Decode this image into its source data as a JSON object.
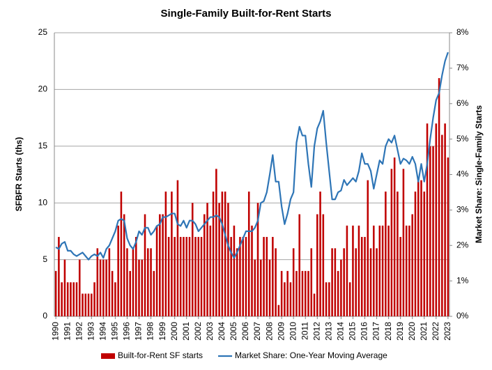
{
  "chart_data": {
    "type": "bar-line",
    "title": "Single-Family Built-for-Rent Starts",
    "y_label": "SFBFR Starts (ths)",
    "y2_label": "Market Share: Single-Family Starts",
    "categories": [
      "1990",
      null,
      null,
      null,
      "1991",
      null,
      null,
      null,
      "1992",
      null,
      null,
      null,
      "1993",
      null,
      null,
      null,
      "1994",
      null,
      null,
      null,
      "1995",
      null,
      null,
      null,
      "1996",
      null,
      null,
      null,
      "1997",
      null,
      null,
      null,
      "1998",
      null,
      null,
      null,
      "1999",
      null,
      null,
      null,
      "2000",
      null,
      null,
      null,
      "2001",
      null,
      null,
      null,
      "2002",
      null,
      null,
      null,
      "2003",
      null,
      null,
      null,
      "2004",
      null,
      null,
      null,
      "2005",
      null,
      null,
      null,
      "2006",
      null,
      null,
      null,
      "2007",
      null,
      null,
      null,
      "2008",
      null,
      null,
      null,
      "2009",
      null,
      null,
      null,
      "2010",
      null,
      null,
      null,
      "2011",
      null,
      null,
      null,
      "2012",
      null,
      null,
      null,
      "2013",
      null,
      null,
      null,
      "2014",
      null,
      null,
      null,
      "2015",
      null,
      null,
      null,
      "2016",
      null,
      null,
      null,
      "2017",
      null,
      null,
      null,
      "2018",
      null,
      null,
      null,
      "2019",
      null,
      null,
      null,
      "2020",
      null,
      null,
      null,
      "2021",
      null,
      null,
      null,
      "2022",
      null,
      null,
      null,
      "2023"
    ],
    "series": [
      {
        "name": "Built-for-Rent SF starts",
        "type": "bar",
        "color": "#c00000",
        "values": [
          4,
          7,
          3,
          5,
          3,
          3,
          3,
          3,
          5,
          2,
          2,
          2,
          2,
          3,
          6,
          5,
          5,
          5,
          6,
          4,
          3,
          8,
          11,
          9,
          6,
          4,
          6,
          7,
          5,
          5,
          9,
          6,
          6,
          4,
          8,
          9,
          9,
          11,
          7,
          11,
          7,
          12,
          7,
          7,
          7,
          7,
          10,
          7,
          7,
          7,
          9,
          10,
          8,
          11,
          13,
          10,
          11,
          11,
          10,
          7,
          8,
          6,
          7,
          7,
          7,
          11,
          8,
          5,
          10,
          5,
          7,
          7,
          5,
          7,
          6,
          1,
          4,
          3,
          4,
          3,
          6,
          4,
          9,
          4,
          4,
          4,
          6,
          2,
          9,
          11,
          9,
          3,
          3,
          6,
          6,
          4,
          5,
          6,
          8,
          3,
          8,
          6,
          8,
          7,
          7,
          12,
          6,
          8,
          6,
          8,
          8,
          11,
          8,
          13,
          14,
          11,
          7,
          13,
          8,
          8,
          9,
          11,
          12,
          12,
          11,
          17,
          15,
          15,
          17,
          21,
          16,
          17,
          14
        ]
      },
      {
        "name": "Market Share: One-Year Moving Average",
        "type": "line",
        "axis": "y2",
        "color": "#2e75b6",
        "values": [
          1.95,
          1.9,
          2.05,
          2.1,
          1.85,
          1.85,
          1.75,
          1.7,
          1.75,
          1.8,
          1.7,
          1.6,
          1.7,
          1.75,
          1.7,
          1.8,
          1.65,
          1.9,
          2.0,
          2.2,
          2.4,
          2.7,
          2.75,
          2.7,
          2.2,
          2.0,
          1.9,
          2.1,
          2.4,
          2.3,
          2.5,
          2.5,
          2.3,
          2.4,
          2.55,
          2.6,
          2.8,
          2.8,
          2.85,
          2.9,
          2.9,
          2.6,
          2.55,
          2.7,
          2.5,
          2.7,
          2.7,
          2.6,
          2.4,
          2.5,
          2.6,
          2.7,
          2.8,
          2.8,
          2.85,
          2.8,
          2.6,
          2.3,
          2.0,
          1.8,
          1.65,
          1.8,
          2.0,
          2.2,
          2.4,
          2.4,
          2.4,
          2.5,
          2.7,
          3.2,
          3.25,
          3.5,
          4.0,
          4.55,
          3.8,
          3.8,
          3.1,
          2.6,
          2.9,
          3.3,
          3.5,
          4.9,
          5.35,
          5.1,
          5.1,
          4.3,
          3.65,
          4.8,
          5.3,
          5.5,
          5.8,
          4.9,
          4.1,
          3.3,
          3.3,
          3.5,
          3.55,
          3.85,
          3.7,
          3.8,
          3.9,
          3.8,
          4.1,
          4.6,
          4.3,
          4.3,
          4.1,
          3.6,
          4.0,
          4.4,
          4.3,
          4.8,
          5.0,
          4.9,
          5.1,
          4.7,
          4.3,
          4.45,
          4.4,
          4.3,
          4.5,
          4.3,
          3.8,
          4.3,
          3.8,
          4.3,
          5.0,
          5.6,
          6.1,
          6.3,
          6.8,
          7.2,
          7.45
        ]
      }
    ],
    "ylim": [
      0,
      25
    ],
    "yticks": [
      0,
      5,
      10,
      15,
      20,
      25
    ],
    "y2lim": [
      0,
      8
    ],
    "y2ticks": [
      {
        "value": 0,
        "label": "0%"
      },
      {
        "value": 1,
        "label": "1%"
      },
      {
        "value": 2,
        "label": "2%"
      },
      {
        "value": 3,
        "label": "3%"
      },
      {
        "value": 4,
        "label": "4%"
      },
      {
        "value": 5,
        "label": "5%"
      },
      {
        "value": 6,
        "label": "6%"
      },
      {
        "value": 7,
        "label": "7%"
      },
      {
        "value": 8,
        "label": "8%"
      }
    ],
    "grid": true,
    "legend": "bottom"
  }
}
